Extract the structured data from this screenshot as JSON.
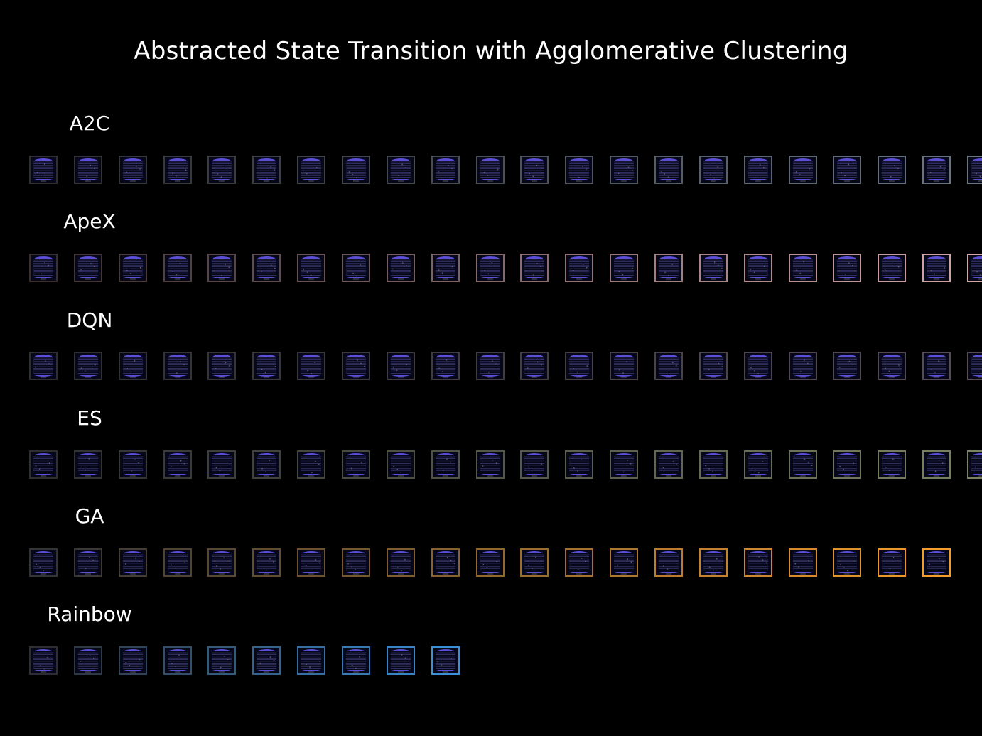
{
  "title": "Abstracted State Transition with Agglomerative Clustering",
  "rows": [
    {
      "label": "A2C",
      "count": 22,
      "start_color": "#2f2f2f",
      "end_color": "#6a7580"
    },
    {
      "label": "ApeX",
      "count": 22,
      "start_color": "#3a2f2f",
      "end_color": "#d6a7a7"
    },
    {
      "label": "DQN",
      "count": 22,
      "start_color": "#2f2f2f",
      "end_color": "#574c56"
    },
    {
      "label": "ES",
      "count": 22,
      "start_color": "#2f2f2f",
      "end_color": "#7a8262"
    },
    {
      "label": "GA",
      "count": 21,
      "start_color": "#333333",
      "end_color": "#f39c2b"
    },
    {
      "label": "Rainbow",
      "count": 10,
      "start_color": "#2d2d33",
      "end_color": "#3b8fd6"
    }
  ],
  "tile_icon": "atari-frame-thumbnail",
  "frame_colors": {
    "background": "#07071a",
    "stripe": "#5a5aa8",
    "bar": "#5b4fd6"
  }
}
